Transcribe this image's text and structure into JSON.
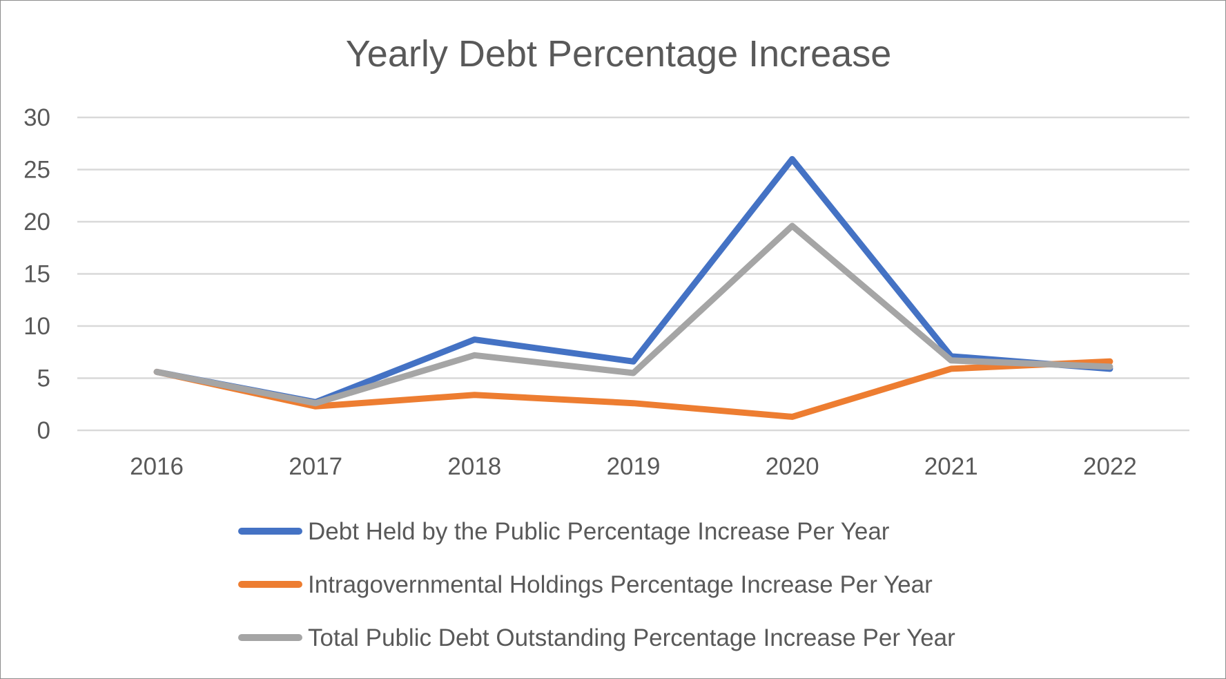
{
  "chart_data": {
    "type": "line",
    "title": "Yearly Debt Percentage Increase",
    "xlabel": "",
    "ylabel": "",
    "categories": [
      "2016",
      "2017",
      "2018",
      "2019",
      "2020",
      "2021",
      "2022"
    ],
    "ylim": [
      0,
      30
    ],
    "yticks": [
      "0",
      "5",
      "10",
      "15",
      "20",
      "25",
      "30"
    ],
    "grid": true,
    "legend_position": "bottom",
    "series": [
      {
        "name": "Debt Held by the Public Percentage Increase Per Year",
        "color": "#4472c4",
        "values": [
          5.6,
          2.7,
          8.7,
          6.6,
          26.0,
          7.1,
          5.9
        ]
      },
      {
        "name": "Intragovernmental Holdings Percentage Increase Per Year",
        "color": "#ed7d31",
        "values": [
          5.6,
          2.3,
          3.4,
          2.6,
          1.3,
          5.9,
          6.6
        ]
      },
      {
        "name": "Total Public Debt Outstanding Percentage Increase Per Year",
        "color": "#a5a5a5",
        "values": [
          5.6,
          2.6,
          7.2,
          5.5,
          19.6,
          6.7,
          6.1
        ]
      }
    ]
  }
}
